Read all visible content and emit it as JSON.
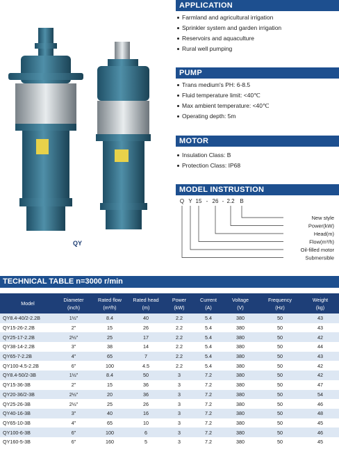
{
  "application": {
    "title": "APPLICATION",
    "items": [
      "Farmland and agricultural irrigation",
      "Sprinkler system and garden irrigation",
      "Reservoirs and aquaculture",
      "Rural well pumping"
    ]
  },
  "pump": {
    "title": "PUMP",
    "items": [
      "Trans medium's PH: 6-8.5",
      "Fluid temperature limit: <40℃",
      "Max ambient temperature: <40℃",
      "Operating depth: 5m"
    ]
  },
  "motor": {
    "title": "MOTOR",
    "items": [
      "Insulation Class: B",
      "Protection Class: IP68"
    ]
  },
  "model_instruction": {
    "title": "MODEL INSTRUSTION",
    "code": [
      "Q",
      "Y",
      "15",
      "-",
      "26",
      "-",
      "2.2",
      "B"
    ],
    "labels": [
      "New style",
      "Power(kW)",
      "Head(m)",
      "Flow(m³/h)",
      "Oil-filled motor",
      "Submersible"
    ]
  },
  "image_caption": "QY",
  "technical_table": {
    "title": "TECHNICAL TABLE  n=3000 r/min",
    "header": [
      [
        "Model"
      ],
      [
        "Diameter",
        "(inch)"
      ],
      [
        "Rated flow",
        "(m³/h)"
      ],
      [
        "Rated head",
        "(m)"
      ],
      [
        "Power",
        "(kW)"
      ],
      [
        "Current",
        "(A)"
      ],
      [
        "Voltage",
        "(V)"
      ],
      [
        "Frequency",
        "(Hz)"
      ],
      [
        "Weight",
        "(kg)"
      ]
    ],
    "rows": [
      [
        "QY8.4-40/2-2.2B",
        "1½\"",
        "8.4",
        "40",
        "2.2",
        "5.4",
        "380",
        "50",
        "43"
      ],
      [
        "QY15-26-2.2B",
        "2\"",
        "15",
        "26",
        "2.2",
        "5.4",
        "380",
        "50",
        "43"
      ],
      [
        "QY25-17-2.2B",
        "2½\"",
        "25",
        "17",
        "2.2",
        "5.4",
        "380",
        "50",
        "42"
      ],
      [
        "QY38-14-2.2B",
        "3\"",
        "38",
        "14",
        "2.2",
        "5.4",
        "380",
        "50",
        "44"
      ],
      [
        "QY65-7-2.2B",
        "4\"",
        "65",
        "7",
        "2.2",
        "5.4",
        "380",
        "50",
        "43"
      ],
      [
        "QY100-4.5-2.2B",
        "6\"",
        "100",
        "4.5",
        "2.2",
        "5.4",
        "380",
        "50",
        "42"
      ],
      [
        "QY8.4-50/2-3B",
        "1½\"",
        "8.4",
        "50",
        "3",
        "7.2",
        "380",
        "50",
        "42"
      ],
      [
        "QY15-36-3B",
        "2\"",
        "15",
        "36",
        "3",
        "7.2",
        "380",
        "50",
        "47"
      ],
      [
        "QY20-36/2-3B",
        "2½\"",
        "20",
        "36",
        "3",
        "7.2",
        "380",
        "50",
        "54"
      ],
      [
        "QY25-26-3B",
        "2½\"",
        "25",
        "26",
        "3",
        "7.2",
        "380",
        "50",
        "46"
      ],
      [
        "QY40-16-3B",
        "3\"",
        "40",
        "16",
        "3",
        "7.2",
        "380",
        "50",
        "48"
      ],
      [
        "QY65-10-3B",
        "4\"",
        "65",
        "10",
        "3",
        "7.2",
        "380",
        "50",
        "45"
      ],
      [
        "QY100-6-3B",
        "6\"",
        "100",
        "6",
        "3",
        "7.2",
        "380",
        "50",
        "46"
      ],
      [
        "QY160-5-3B",
        "6\"",
        "160",
        "5",
        "3",
        "7.2",
        "380",
        "50",
        "45"
      ]
    ]
  }
}
